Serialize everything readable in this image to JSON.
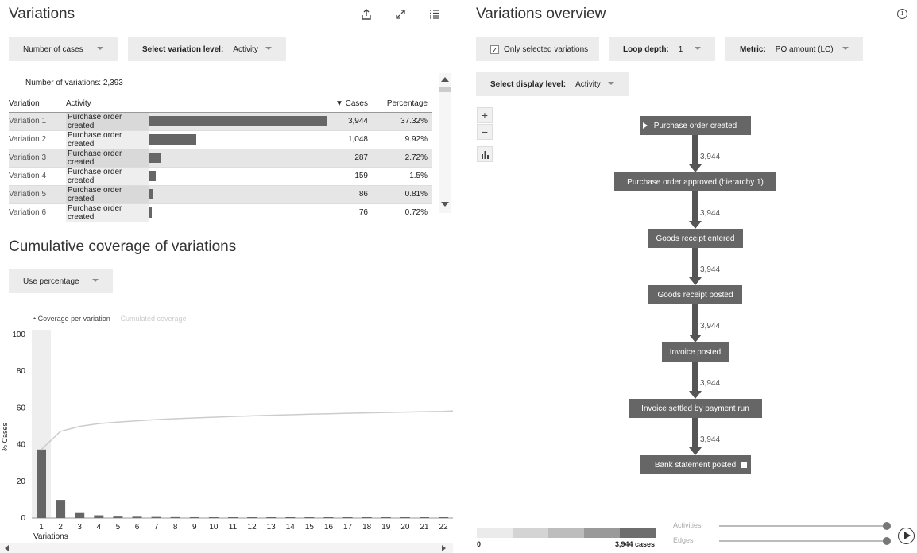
{
  "left": {
    "title": "Variations",
    "dropdown_metric": "Number of cases",
    "dropdown_level_label": "Select variation level:",
    "dropdown_level_value": "Activity",
    "count_text": "Number of variations: 2,393",
    "table": {
      "headers": [
        "Variation",
        "Activity",
        "▼ Cases",
        "Percentage"
      ],
      "rows": [
        {
          "name": "Variation 1",
          "activity": "Purchase order created",
          "cases": "3,944",
          "pct": "37.32%",
          "share": 0.3732,
          "selected": true
        },
        {
          "name": "Variation 2",
          "activity": "Purchase order created",
          "cases": "1,048",
          "pct": "9.92%",
          "share": 0.0992,
          "selected": false
        },
        {
          "name": "Variation 3",
          "activity": "Purchase order created",
          "cases": "287",
          "pct": "2.72%",
          "share": 0.0272,
          "selected": true
        },
        {
          "name": "Variation 4",
          "activity": "Purchase order created",
          "cases": "159",
          "pct": "1.5%",
          "share": 0.015,
          "selected": false
        },
        {
          "name": "Variation 5",
          "activity": "Purchase order created",
          "cases": "86",
          "pct": "0.81%",
          "share": 0.0081,
          "selected": true
        },
        {
          "name": "Variation 6",
          "activity": "Purchase order created",
          "cases": "76",
          "pct": "0.72%",
          "share": 0.0072,
          "selected": false
        }
      ]
    },
    "coverage_title": "Cumulative coverage of variations",
    "coverage_dropdown": "Use percentage"
  },
  "chart_data": {
    "type": "bar",
    "legend": [
      "• Coverage per variation",
      "- Cumulated coverage"
    ],
    "ylabel": "% Cases",
    "xlabel": "Variations",
    "ylim": [
      0,
      100
    ],
    "yticks": [
      "0",
      "20",
      "40",
      "60",
      "80",
      "100"
    ],
    "categories": [
      "1",
      "2",
      "3",
      "4",
      "5",
      "6",
      "7",
      "8",
      "9",
      "10",
      "11",
      "12",
      "13",
      "14",
      "15",
      "16",
      "17",
      "18",
      "19",
      "20",
      "21",
      "22"
    ],
    "series": [
      {
        "values": [
          37.32,
          9.92,
          2.72,
          1.5,
          0.81,
          0.72,
          0.6,
          0.5,
          0.45,
          0.4,
          0.38,
          0.35,
          0.32,
          0.3,
          0.28,
          0.26,
          0.25,
          0.23,
          0.22,
          0.21,
          0.2,
          0.19
        ]
      },
      {
        "values": [
          37.32,
          47.24,
          49.96,
          51.46,
          52.27,
          52.99,
          53.6,
          54.1,
          54.55,
          54.95,
          55.33,
          55.68,
          56.0,
          56.3,
          56.58,
          56.84,
          57.09,
          57.32,
          57.54,
          57.75,
          57.95,
          58.14
        ]
      }
    ],
    "colors": {
      "bars": "#666666",
      "line": "#cccccc"
    }
  },
  "right": {
    "title": "Variations overview",
    "only_selected_label": "Only selected variations",
    "only_selected_checked": "✓",
    "loop_label": "Loop depth:",
    "loop_value": "1",
    "metric_label": "Metric:",
    "metric_value": "PO amount (LC)",
    "display_label": "Select display level:",
    "display_value": "Activity",
    "nodes": [
      "Purchase order created",
      "Purchase order approved (hierarchy 1)",
      "Goods receipt entered",
      "Goods receipt posted",
      "Invoice posted",
      "Invoice settled by payment run",
      "Bank statement posted"
    ],
    "edges": [
      "3,944",
      "3,944",
      "3,944",
      "3,944",
      "3,944",
      "3,944"
    ],
    "legend_min": "0",
    "legend_max": "3,944 cases",
    "slider_activities": "Activities",
    "slider_edges": "Edges"
  }
}
